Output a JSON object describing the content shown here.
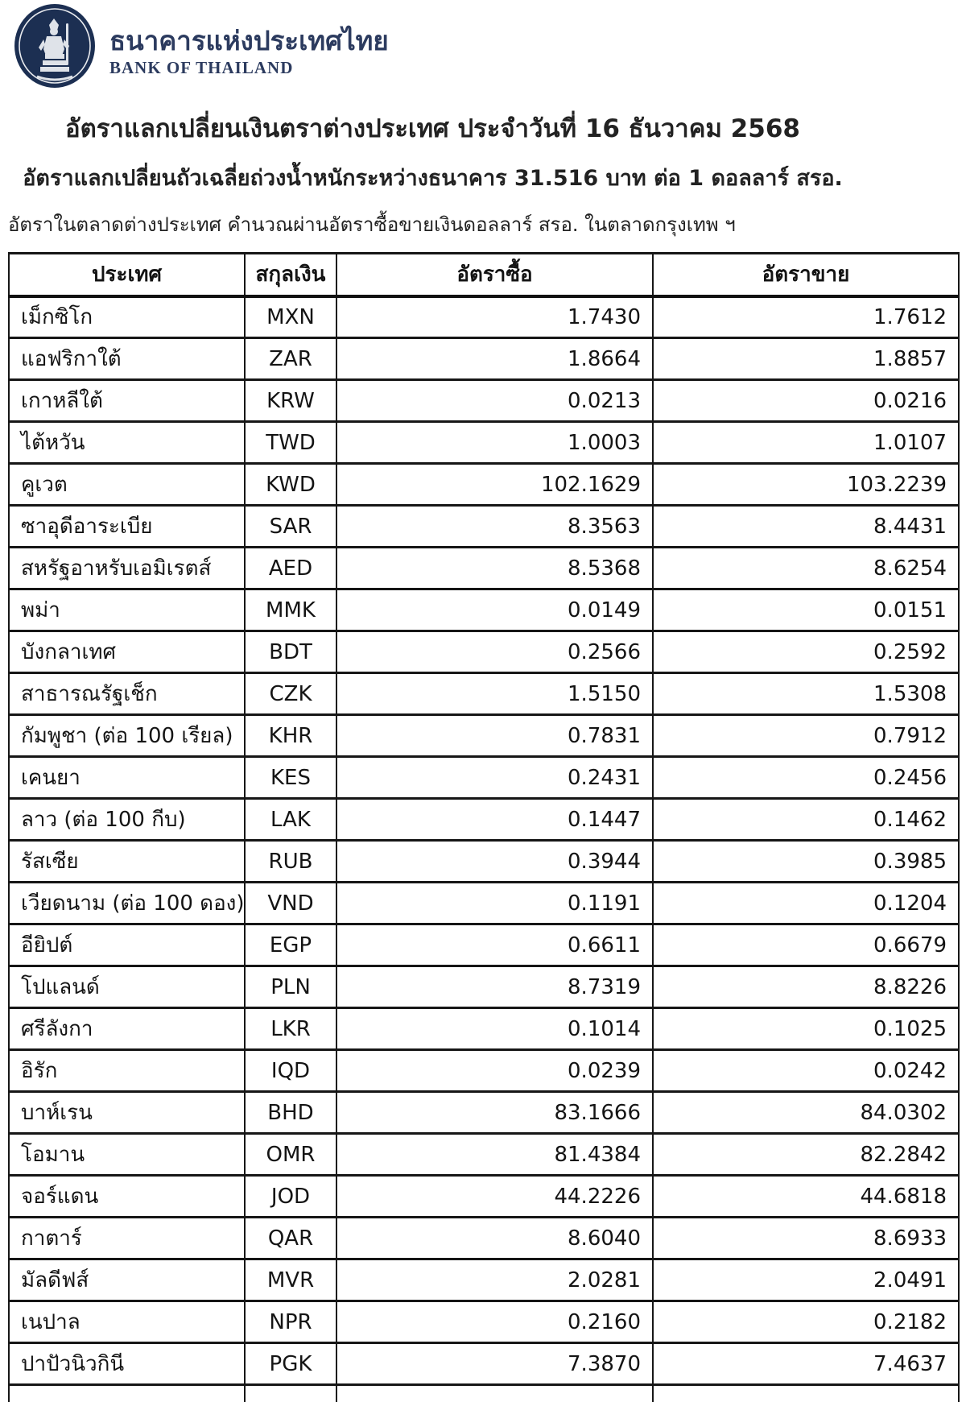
{
  "brand": {
    "thai_name": "ธนาคารแห่งประเทศไทย",
    "english_name": "BANK OF THAILAND",
    "logo_navy": "#1c2f52"
  },
  "titles": {
    "main": "อัตราแลกเปลี่ยนเงินตราต่างประเทศ ประจำวันที่ 16 ธันวาคม 2568",
    "sub": "อัตราแลกเปลี่ยนถัวเฉลี่ยถ่วงน้ำหนักระหว่างธนาคาร 31.516 บาท ต่อ 1 ดอลลาร์ สรอ.",
    "note": "อัตราในตลาดต่างประเทศ คำนวณผ่านอัตราซื้อขายเงินดอลลาร์ สรอ. ในตลาดกรุงเทพ ฯ"
  },
  "colors": {
    "brand_navy": "#2c3b5f",
    "text_dark": "#222222",
    "table_border": "#161616",
    "background": "#ffffff"
  },
  "chart_data": {
    "type": "table",
    "title": "อัตราแลกเปลี่ยนเงินตราต่างประเทศ ประจำวันที่ 16 ธันวาคม 2568",
    "headers": {
      "country": "ประเทศ",
      "currency": "สกุลเงิน",
      "buy": "อัตราซื้อ",
      "sell": "อัตราขาย"
    },
    "rows": [
      {
        "country": "เม็กซิโก",
        "currency": "MXN",
        "buy": "1.7430",
        "sell": "1.7612"
      },
      {
        "country": "แอฟริกาใต้",
        "currency": "ZAR",
        "buy": "1.8664",
        "sell": "1.8857"
      },
      {
        "country": "เกาหลีใต้",
        "currency": "KRW",
        "buy": "0.0213",
        "sell": "0.0216"
      },
      {
        "country": "ไต้หวัน",
        "currency": "TWD",
        "buy": "1.0003",
        "sell": "1.0107"
      },
      {
        "country": "คูเวต",
        "currency": "KWD",
        "buy": "102.1629",
        "sell": "103.2239"
      },
      {
        "country": "ซาอุดีอาระเบีย",
        "currency": "SAR",
        "buy": "8.3563",
        "sell": "8.4431"
      },
      {
        "country": "สหรัฐอาหรับเอมิเรตส์",
        "currency": "AED",
        "buy": "8.5368",
        "sell": "8.6254"
      },
      {
        "country": "พม่า",
        "currency": "MMK",
        "buy": "0.0149",
        "sell": "0.0151"
      },
      {
        "country": "บังกลาเทศ",
        "currency": "BDT",
        "buy": "0.2566",
        "sell": "0.2592"
      },
      {
        "country": "สาธารณรัฐเช็ก",
        "currency": "CZK",
        "buy": "1.5150",
        "sell": "1.5308"
      },
      {
        "country": "กัมพูชา (ต่อ 100 เรียล)",
        "currency": "KHR",
        "buy": "0.7831",
        "sell": "0.7912"
      },
      {
        "country": "เคนยา",
        "currency": "KES",
        "buy": "0.2431",
        "sell": "0.2456"
      },
      {
        "country": "ลาว (ต่อ 100 กีบ)",
        "currency": "LAK",
        "buy": "0.1447",
        "sell": "0.1462"
      },
      {
        "country": "รัสเซีย",
        "currency": "RUB",
        "buy": "0.3944",
        "sell": "0.3985"
      },
      {
        "country": "เวียดนาม (ต่อ 100 ดอง)",
        "currency": "VND",
        "buy": "0.1191",
        "sell": "0.1204"
      },
      {
        "country": "อียิปต์",
        "currency": "EGP",
        "buy": "0.6611",
        "sell": "0.6679"
      },
      {
        "country": "โปแลนด์",
        "currency": "PLN",
        "buy": "8.7319",
        "sell": "8.8226"
      },
      {
        "country": "ศรีลังกา",
        "currency": "LKR",
        "buy": "0.1014",
        "sell": "0.1025"
      },
      {
        "country": "อิรัก",
        "currency": "IQD",
        "buy": "0.0239",
        "sell": "0.0242"
      },
      {
        "country": "บาห์เรน",
        "currency": "BHD",
        "buy": "83.1666",
        "sell": "84.0302"
      },
      {
        "country": "โอมาน",
        "currency": "OMR",
        "buy": "81.4384",
        "sell": "82.2842"
      },
      {
        "country": "จอร์แดน",
        "currency": "JOD",
        "buy": "44.2226",
        "sell": "44.6818"
      },
      {
        "country": "กาตาร์",
        "currency": "QAR",
        "buy": "8.6040",
        "sell": "8.6933"
      },
      {
        "country": "มัลดีฟส์",
        "currency": "MVR",
        "buy": "2.0281",
        "sell": "2.0491"
      },
      {
        "country": "เนปาล",
        "currency": "NPR",
        "buy": "0.2160",
        "sell": "0.2182"
      },
      {
        "country": "ปาปัวนิวกินี",
        "currency": "PGK",
        "buy": "7.3870",
        "sell": "7.4637"
      }
    ]
  }
}
